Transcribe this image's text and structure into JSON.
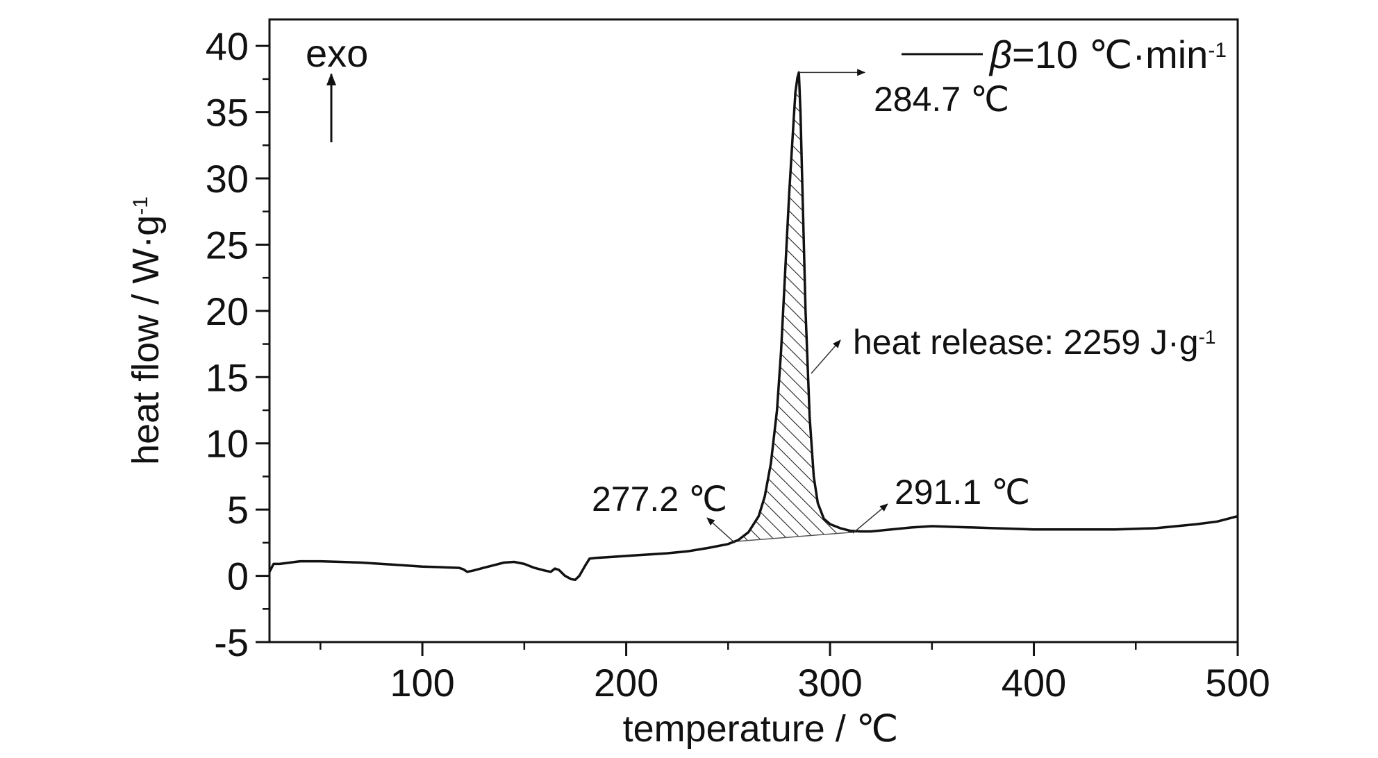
{
  "chart_data": {
    "type": "line",
    "xlabel": "temperature / ℃",
    "ylabel": "heat flow / W·g",
    "ylabel_sup": "-1",
    "xlim": [
      25,
      500
    ],
    "ylim": [
      -5,
      42
    ],
    "x_ticks": [
      100,
      200,
      300,
      400,
      500
    ],
    "x_minor_ticks": [
      50,
      150,
      250,
      350,
      450
    ],
    "y_ticks": [
      -5,
      0,
      5,
      10,
      15,
      20,
      25,
      30,
      35,
      40
    ],
    "grid": false,
    "legend": {
      "position": "top-right",
      "symbol": "β",
      "text": "=10 ℃·min",
      "sup": "-1"
    },
    "series": [
      {
        "color": "#111111",
        "x": [
          25,
          27,
          30,
          40,
          50,
          60,
          70,
          80,
          90,
          100,
          110,
          118,
          120,
          122,
          125,
          130,
          135,
          140,
          145,
          150,
          155,
          160,
          163,
          165,
          167,
          170,
          173,
          175,
          177,
          180,
          182,
          185,
          190,
          200,
          210,
          220,
          230,
          240,
          250,
          255,
          260,
          265,
          268,
          271,
          274,
          276,
          278,
          280,
          282,
          283,
          284,
          284.7,
          285.5,
          286.5,
          288,
          290,
          292,
          294,
          297,
          300,
          305,
          310,
          315,
          320,
          330,
          340,
          350,
          360,
          370,
          380,
          390,
          400,
          420,
          440,
          460,
          480,
          490,
          500
        ],
        "y": [
          0.3,
          0.9,
          0.9,
          1.1,
          1.1,
          1.05,
          1.0,
          0.9,
          0.8,
          0.7,
          0.65,
          0.6,
          0.5,
          0.3,
          0.4,
          0.6,
          0.8,
          1.0,
          1.05,
          0.9,
          0.6,
          0.4,
          0.3,
          0.55,
          0.45,
          0.0,
          -0.25,
          -0.3,
          0.0,
          0.8,
          1.3,
          1.35,
          1.4,
          1.5,
          1.6,
          1.7,
          1.85,
          2.1,
          2.4,
          2.7,
          3.3,
          4.5,
          6.0,
          8.5,
          12.5,
          17.0,
          23.0,
          29.0,
          34.0,
          36.5,
          37.6,
          38.0,
          35.0,
          29.0,
          20.0,
          12.0,
          7.5,
          5.5,
          4.3,
          3.9,
          3.6,
          3.4,
          3.35,
          3.35,
          3.5,
          3.65,
          3.75,
          3.7,
          3.65,
          3.6,
          3.55,
          3.5,
          3.5,
          3.5,
          3.6,
          3.9,
          4.1,
          4.5
        ]
      }
    ],
    "shaded_region": {
      "x_start": 277.2,
      "x_end": 291.1,
      "label_value": "2259"
    },
    "annotations": {
      "peak": "284.7 ℃",
      "onset": "277.2 ℃",
      "endset": "291.1 ℃",
      "heat_release": "heat release: 2259 J·g",
      "heat_release_sup": "-1",
      "exo": "exo"
    }
  }
}
